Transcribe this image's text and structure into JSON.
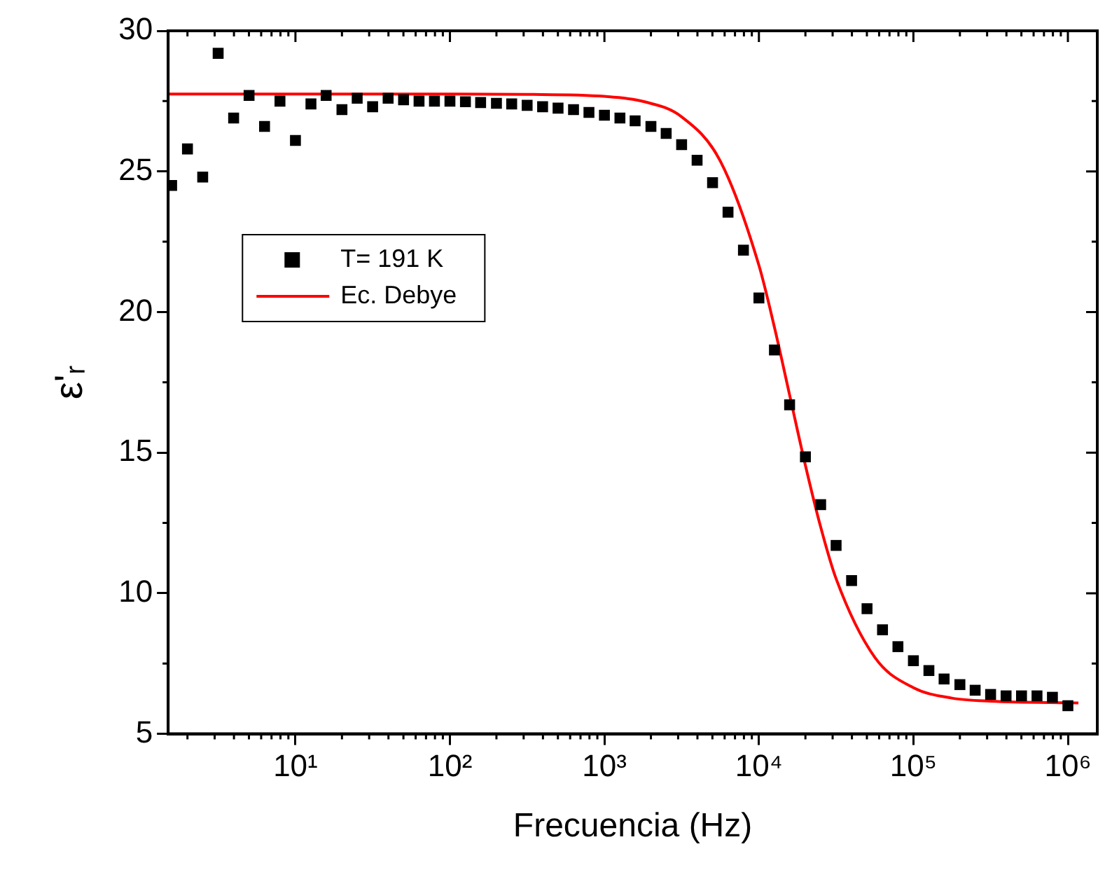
{
  "chart_data": {
    "type": "scatter",
    "xlabel": "Frecuencia (Hz)",
    "ylabel": "ε'ᵣ",
    "log": "x",
    "grid": false,
    "legend": "left",
    "xlim": [
      1.5,
      1550000
    ],
    "ylim": [
      5,
      30
    ],
    "xticks": [
      {
        "value": 10,
        "label": "10¹"
      },
      {
        "value": 100,
        "label": "10²"
      },
      {
        "value": 1000,
        "label": "10³"
      },
      {
        "value": 10000,
        "label": "10⁴"
      },
      {
        "value": 100000,
        "label": "10⁵"
      },
      {
        "value": 1000000,
        "label": "10⁶"
      }
    ],
    "yticks": [
      5,
      10,
      15,
      20,
      25,
      30
    ],
    "series": [
      {
        "name": "T= 191 K",
        "marker": "square",
        "color": "#000000",
        "x": [
          1.58,
          2.0,
          2.51,
          3.16,
          3.98,
          5.01,
          6.31,
          7.94,
          10,
          12.6,
          15.8,
          20.0,
          25.1,
          31.6,
          39.8,
          50.1,
          63.1,
          79.4,
          100,
          126,
          158,
          200,
          251,
          316,
          398,
          501,
          631,
          794,
          1000,
          1260,
          1580,
          2000,
          2510,
          3160,
          3980,
          5010,
          6310,
          7940,
          10000,
          12600,
          15800,
          20000,
          25100,
          31600,
          39800,
          50100,
          63100,
          79400,
          100000,
          126000,
          158000,
          200000,
          251000,
          316000,
          398000,
          501000,
          631000,
          794000,
          1000000
        ],
        "values": [
          24.5,
          25.8,
          24.8,
          29.2,
          26.9,
          27.7,
          26.6,
          27.5,
          26.1,
          27.4,
          27.7,
          27.2,
          27.6,
          27.3,
          27.6,
          27.55,
          27.5,
          27.5,
          27.5,
          27.48,
          27.45,
          27.42,
          27.4,
          27.35,
          27.3,
          27.25,
          27.2,
          27.1,
          27.0,
          26.9,
          26.8,
          26.6,
          26.35,
          25.95,
          25.4,
          24.6,
          23.55,
          22.2,
          20.5,
          18.65,
          16.7,
          14.85,
          13.15,
          11.7,
          10.45,
          9.45,
          8.7,
          8.1,
          7.6,
          7.25,
          6.95,
          6.75,
          6.55,
          6.4,
          6.35,
          6.35,
          6.35,
          6.3,
          6.0
        ]
      },
      {
        "name": "Ec. Debye",
        "type": "line",
        "marker": "none",
        "line_style": "solid",
        "color": "#ff0000",
        "x": [
          1.5,
          10,
          100,
          316,
          1000,
          1778,
          3162,
          5623,
          10000,
          12589,
          15849,
          19953,
          25119,
          31623,
          56234,
          100000,
          177828,
          316228,
          1170000
        ],
        "values": [
          27.75,
          27.75,
          27.75,
          27.74,
          27.67,
          27.49,
          26.94,
          25.37,
          21.66,
          19.47,
          17.02,
          14.57,
          12.35,
          10.51,
          7.72,
          6.64,
          6.27,
          6.16,
          6.1
        ]
      }
    ]
  }
}
